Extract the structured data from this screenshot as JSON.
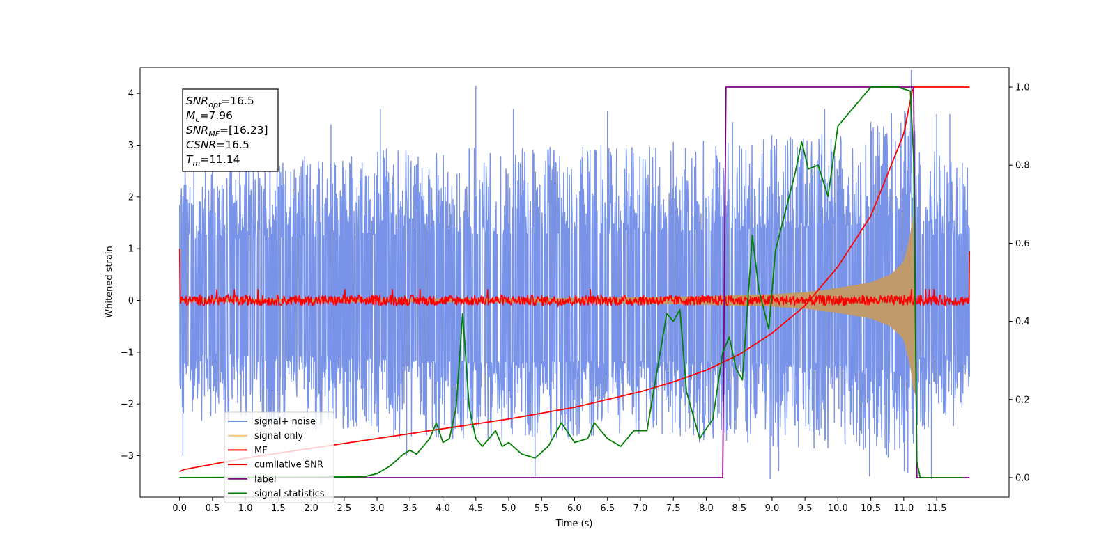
{
  "chart_data": {
    "type": "line",
    "xlabel": "Time (s)",
    "ylabel": "Whitened strain",
    "xlim": [
      -0.6,
      12.6
    ],
    "ylim_left": [
      -3.8,
      4.5
    ],
    "ylim_right": [
      -0.05,
      1.05
    ],
    "x_ticks": [
      0.0,
      0.5,
      1.0,
      1.5,
      2.0,
      2.5,
      3.0,
      3.5,
      4.0,
      4.5,
      5.0,
      5.5,
      6.0,
      6.5,
      7.0,
      7.5,
      8.0,
      8.5,
      9.0,
      9.5,
      10.0,
      10.5,
      11.0,
      11.5
    ],
    "x_tick_labels": [
      "0.0",
      "0.5",
      "1.0",
      "1.5",
      "2.0",
      "2.5",
      "3.0",
      "3.5",
      "4.0",
      "4.5",
      "5.0",
      "5.5",
      "6.0",
      "6.5",
      "7.0",
      "7.5",
      "8.0",
      "8.5",
      "9.0",
      "9.5",
      "10.0",
      "10.5",
      "11.0",
      "11.5"
    ],
    "y_left_ticks": [
      -3,
      -2,
      -1,
      0,
      1,
      2,
      3,
      4
    ],
    "y_left_tick_labels": [
      "−3",
      "−2",
      "−1",
      "0",
      "1",
      "2",
      "3",
      "4"
    ],
    "y_right_ticks": [
      0.0,
      0.2,
      0.4,
      0.6,
      0.8,
      1.0
    ],
    "y_right_tick_labels": [
      "0.0",
      "0.2",
      "0.4",
      "0.6",
      "0.8",
      "1.0"
    ],
    "legend_position": "lower-left",
    "annotation": {
      "lines": [
        {
          "base": "SNR",
          "sub": "opt",
          "value": "=16.5"
        },
        {
          "base": "M",
          "sub": "c",
          "value": "=7.96"
        },
        {
          "base": "SNR",
          "sub": "MF",
          "value": "=[16.23]"
        },
        {
          "base": "CSNR",
          "sub": "",
          "value": "=16.5"
        },
        {
          "base": "T",
          "sub": "m",
          "value": "=11.14"
        }
      ]
    },
    "series": [
      {
        "name": "signal+ noise",
        "axis": "left",
        "color": "#7893e7",
        "noise_envelope_x": [
          0.0,
          2.0,
          4.0,
          6.0,
          8.0,
          9.0,
          10.0,
          10.5,
          11.0,
          11.14,
          11.2,
          12.0
        ],
        "noise_envelope_ymax": [
          2.3,
          2.4,
          2.5,
          2.5,
          2.6,
          2.7,
          2.8,
          2.9,
          3.5,
          3.9,
          2.5,
          2.4
        ],
        "noise_envelope_ymin": [
          -2.0,
          -2.1,
          -2.3,
          -2.3,
          -2.3,
          -2.4,
          -2.4,
          -2.5,
          -2.8,
          -3.0,
          -2.2,
          -2.0
        ],
        "spikes": [
          {
            "x": 4.5,
            "y": 4.15
          },
          {
            "x": 3.05,
            "y": 3.7
          },
          {
            "x": 6.5,
            "y": 3.65
          },
          {
            "x": 5.07,
            "y": 3.7
          },
          {
            "x": 9.8,
            "y": 3.7
          },
          {
            "x": 11.7,
            "y": 3.6
          },
          {
            "x": 11.5,
            "y": 3.6
          },
          {
            "x": 2.3,
            "y": 3.4
          },
          {
            "x": 8.4,
            "y": 3.45
          },
          {
            "x": 5.4,
            "y": -3.4
          },
          {
            "x": 8.97,
            "y": -3.45
          },
          {
            "x": 10.48,
            "y": -3.4
          },
          {
            "x": 11.42,
            "y": -3.45
          },
          {
            "x": 3.45,
            "y": -3.0
          },
          {
            "x": 0.05,
            "y": -3.0
          },
          {
            "x": 9.1,
            "y": -3.3
          }
        ]
      },
      {
        "name": "signal only",
        "axis": "left",
        "color": "#f5c57a",
        "envelope_x": [
          0.0,
          4.0,
          6.0,
          7.5,
          8.5,
          9.0,
          9.5,
          10.0,
          10.5,
          10.8,
          11.0,
          11.1,
          11.14
        ],
        "envelope_amp": [
          0.03,
          0.04,
          0.05,
          0.07,
          0.1,
          0.12,
          0.16,
          0.24,
          0.35,
          0.5,
          0.75,
          1.3,
          1.7
        ]
      },
      {
        "name": "MF",
        "axis": "left",
        "color": "#ff0000",
        "baseline_amp": 0.1,
        "edge_values": [
          {
            "x": 0.0,
            "y": 1.0
          },
          {
            "x": 12.0,
            "y": 0.95
          }
        ]
      },
      {
        "name": "cumilative SNR",
        "axis": "right",
        "color": "#ff0000",
        "x": [
          0.0,
          0.05,
          1.0,
          2.0,
          3.0,
          4.0,
          5.0,
          6.0,
          7.0,
          7.5,
          8.0,
          8.5,
          9.0,
          9.5,
          10.0,
          10.5,
          11.0,
          11.14,
          12.0
        ],
        "y": [
          0.015,
          0.02,
          0.05,
          0.075,
          0.1,
          0.125,
          0.15,
          0.18,
          0.22,
          0.245,
          0.275,
          0.315,
          0.37,
          0.44,
          0.54,
          0.67,
          0.88,
          1.0,
          1.0
        ]
      },
      {
        "name": "label",
        "axis": "right",
        "color": "#800080",
        "x": [
          0.0,
          8.25,
          8.3,
          11.14,
          11.15,
          11.2,
          12.0
        ],
        "y": [
          0.0,
          0.0,
          1.0,
          1.0,
          1.0,
          0.0,
          0.0
        ]
      },
      {
        "name": "signal statistics",
        "axis": "right",
        "color": "#008000",
        "x": [
          0.0,
          2.8,
          3.0,
          3.2,
          3.4,
          3.5,
          3.6,
          3.7,
          3.8,
          3.9,
          4.0,
          4.1,
          4.2,
          4.3,
          4.4,
          4.5,
          4.6,
          4.7,
          4.8,
          4.9,
          5.0,
          5.2,
          5.4,
          5.6,
          5.8,
          6.0,
          6.2,
          6.3,
          6.5,
          6.7,
          6.9,
          7.1,
          7.3,
          7.4,
          7.5,
          7.6,
          7.7,
          7.9,
          8.1,
          8.25,
          8.35,
          8.45,
          8.55,
          8.7,
          8.8,
          8.95,
          9.05,
          9.2,
          9.35,
          9.45,
          9.55,
          9.7,
          9.85,
          10.0,
          10.15,
          10.3,
          10.5,
          10.7,
          10.9,
          11.1,
          11.15,
          11.2,
          11.25,
          11.5,
          11.9
        ],
        "y": [
          0.0,
          0.002,
          0.01,
          0.03,
          0.06,
          0.07,
          0.06,
          0.08,
          0.1,
          0.14,
          0.09,
          0.1,
          0.18,
          0.42,
          0.18,
          0.1,
          0.08,
          0.1,
          0.12,
          0.08,
          0.09,
          0.06,
          0.05,
          0.08,
          0.14,
          0.09,
          0.1,
          0.14,
          0.1,
          0.08,
          0.12,
          0.12,
          0.32,
          0.42,
          0.4,
          0.43,
          0.22,
          0.1,
          0.15,
          0.32,
          0.36,
          0.28,
          0.25,
          0.62,
          0.48,
          0.38,
          0.58,
          0.68,
          0.78,
          0.86,
          0.79,
          0.8,
          0.72,
          0.9,
          0.93,
          0.96,
          1.0,
          1.0,
          1.0,
          0.99,
          0.82,
          0.04,
          0.0,
          0.0,
          0.0
        ]
      }
    ]
  }
}
